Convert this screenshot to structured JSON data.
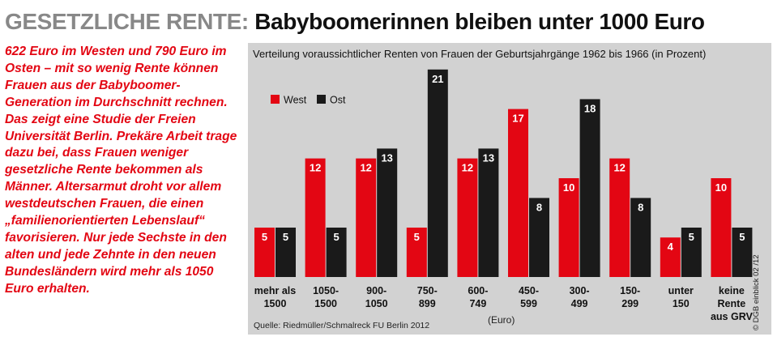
{
  "headline": {
    "kicker": "GESETZLICHE RENTE:",
    "title": "Babyboomerinnen bleiben unter 1000 Euro"
  },
  "teaser": "622 Euro im Westen und 790 Euro im Osten – mit so wenig Rente können Frauen aus der Babyboomer-Generation im Durchschnitt rechnen. Das zeigt eine Studie der Freien Universität Berlin. Prekäre Arbeit trage dazu bei, dass Frauen weniger gesetzliche Rente bekommen als Männer. Altersarmut droht vor allem westdeutschen Frauen, die einen „familienorientierten Lebenslauf“ favorisieren. Nur jede Sechste in den alten und jede Zehnte in den neuen Bundesländern wird mehr als 1050 Euro erhalten.",
  "source": "Quelle: Riedmüller/Schmalreck FU Berlin 2012",
  "copyright": "© DGB einblick 02 /12",
  "colors": {
    "west": "#e30613",
    "ost": "#1a1a1a",
    "panel": "#d2d2d2",
    "kicker": "#888888",
    "teaser": "#e30613"
  },
  "chart_data": {
    "type": "bar",
    "title": "Verteilung voraussichtlicher Renten von Frauen der Geburtsjahrgänge 1962 bis 1966 (in Prozent)",
    "xlabel": "(Euro)",
    "ylabel": "",
    "ylim": [
      0,
      22
    ],
    "grid": false,
    "legend": "top-left",
    "categories": [
      [
        "mehr als",
        "1500"
      ],
      [
        "1050-",
        "1500"
      ],
      [
        "900-",
        "1050"
      ],
      [
        "750-",
        "899"
      ],
      [
        "600-",
        "749"
      ],
      [
        "450-",
        "599"
      ],
      [
        "300-",
        "499"
      ],
      [
        "150-",
        "299"
      ],
      [
        "unter",
        "150"
      ],
      [
        "keine",
        "Rente",
        "aus GRV"
      ]
    ],
    "series": [
      {
        "name": "West",
        "values": [
          5,
          12,
          12,
          5,
          12,
          17,
          10,
          12,
          4,
          10
        ]
      },
      {
        "name": "Ost",
        "values": [
          5,
          5,
          13,
          21,
          13,
          8,
          18,
          8,
          5,
          5
        ]
      }
    ]
  }
}
